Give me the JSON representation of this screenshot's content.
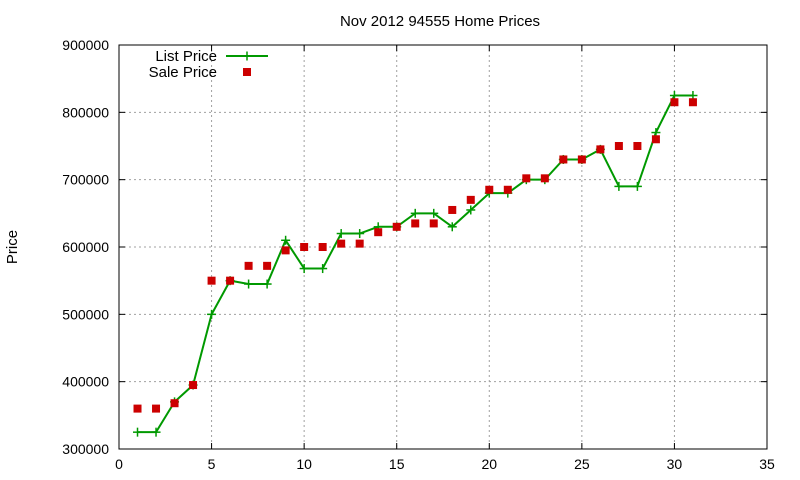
{
  "chart_data": {
    "type": "line",
    "title": "Nov 2012 94555 Home Prices",
    "xlabel": "",
    "ylabel": "Price",
    "xlim": [
      0,
      35
    ],
    "ylim": [
      300000,
      900000
    ],
    "xticks": [
      0,
      5,
      10,
      15,
      20,
      25,
      30,
      35
    ],
    "yticks": [
      300000,
      400000,
      500000,
      600000,
      700000,
      800000,
      900000
    ],
    "grid": true,
    "legend_position": "top-left",
    "series": [
      {
        "name": "List Price",
        "style": "line-plus",
        "color": "#009900",
        "x": [
          1,
          2,
          3,
          4,
          5,
          6,
          7,
          8,
          9,
          10,
          11,
          12,
          13,
          14,
          15,
          16,
          17,
          18,
          19,
          20,
          21,
          22,
          23,
          24,
          25,
          26,
          27,
          28,
          29,
          30,
          31
        ],
        "y": [
          325000,
          325000,
          370000,
          395000,
          500000,
          550000,
          545000,
          545000,
          610000,
          568000,
          568000,
          620000,
          620000,
          630000,
          630000,
          650000,
          650000,
          630000,
          655000,
          680000,
          680000,
          700000,
          700000,
          730000,
          730000,
          745000,
          690000,
          690000,
          770000,
          825000,
          825000
        ]
      },
      {
        "name": "Sale Price",
        "style": "square",
        "color": "#cc0000",
        "x": [
          1,
          2,
          3,
          4,
          5,
          6,
          7,
          8,
          9,
          10,
          11,
          12,
          13,
          14,
          15,
          16,
          17,
          18,
          19,
          20,
          21,
          22,
          23,
          24,
          25,
          26,
          27,
          28,
          29,
          30,
          31
        ],
        "y": [
          360000,
          360000,
          368000,
          395000,
          550000,
          550000,
          572000,
          572000,
          595000,
          600000,
          600000,
          605000,
          605000,
          622000,
          630000,
          635000,
          635000,
          655000,
          670000,
          685000,
          685000,
          702000,
          702000,
          730000,
          730000,
          745000,
          750000,
          750000,
          760000,
          815000,
          815000
        ]
      }
    ]
  }
}
